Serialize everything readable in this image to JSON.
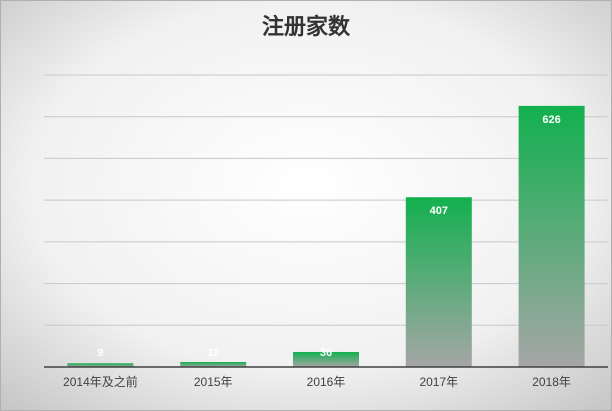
{
  "chart_data": {
    "type": "bar",
    "title": "注册家数",
    "categories": [
      "2014年及之前",
      "2015年",
      "2016年",
      "2017年",
      "2018年"
    ],
    "values": [
      9,
      12,
      36,
      407,
      626
    ],
    "color": "#12b04f",
    "ylim": [
      0,
      700
    ],
    "yticks": [
      0,
      100,
      200,
      300,
      400,
      500,
      600,
      700
    ],
    "grid": true
  }
}
